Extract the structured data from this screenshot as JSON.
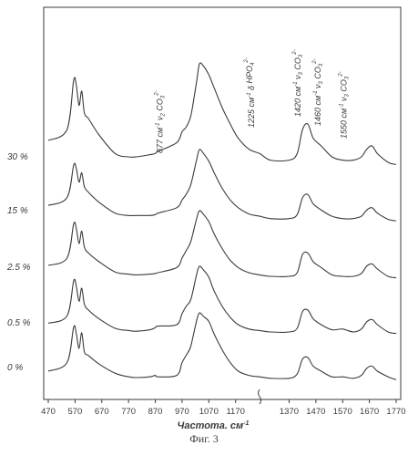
{
  "figure_caption": "Фиг. 3",
  "chart_data": {
    "type": "line",
    "xlabel": "Частота, см",
    "xlabel_superscript": "-1",
    "x_ticks": [
      "470",
      "570",
      "670",
      "770",
      "870",
      "970",
      "1070",
      "1170",
      "1370",
      "1470",
      "1570",
      "1670",
      "1770"
    ],
    "axis_break_between": [
      "1170",
      "1370"
    ],
    "series": [
      {
        "name": "30 %",
        "x": [
          470,
          540,
          565,
          575,
          585,
          595,
          605,
          620,
          660,
          720,
          770,
          800,
          850,
          870,
          880,
          950,
          970,
          985,
          1000,
          1010,
          1025,
          1035,
          1050,
          1070,
          1090,
          1120,
          1150,
          1180,
          1220,
          1260,
          1300,
          1370,
          1400,
          1420,
          1440,
          1460,
          1490,
          1530,
          1570,
          1610,
          1640,
          1660,
          1680,
          1700,
          1740,
          1770
        ],
        "y": [
          0.3,
          0.4,
          0.85,
          0.8,
          0.62,
          0.75,
          0.55,
          0.5,
          0.35,
          0.18,
          0.15,
          0.15,
          0.17,
          0.18,
          0.2,
          0.28,
          0.38,
          0.42,
          0.5,
          0.62,
          0.85,
          1.0,
          0.98,
          0.9,
          0.78,
          0.6,
          0.45,
          0.32,
          0.22,
          0.18,
          0.12,
          0.12,
          0.18,
          0.4,
          0.45,
          0.32,
          0.25,
          0.15,
          0.12,
          0.12,
          0.15,
          0.22,
          0.25,
          0.18,
          0.1,
          0.08
        ]
      },
      {
        "name": "15 %",
        "x": [
          470,
          540,
          565,
          575,
          585,
          595,
          605,
          620,
          660,
          720,
          770,
          800,
          850,
          870,
          880,
          950,
          970,
          985,
          1000,
          1010,
          1025,
          1035,
          1050,
          1070,
          1090,
          1120,
          1150,
          1180,
          1220,
          1260,
          1300,
          1370,
          1400,
          1420,
          1440,
          1460,
          1490,
          1530,
          1570,
          1610,
          1640,
          1660,
          1680,
          1700,
          1740,
          1770
        ],
        "y": [
          0.28,
          0.38,
          0.8,
          0.75,
          0.58,
          0.7,
          0.52,
          0.45,
          0.32,
          0.18,
          0.15,
          0.15,
          0.15,
          0.16,
          0.18,
          0.25,
          0.35,
          0.42,
          0.52,
          0.65,
          0.88,
          1.0,
          0.95,
          0.85,
          0.7,
          0.5,
          0.35,
          0.25,
          0.17,
          0.14,
          0.11,
          0.11,
          0.16,
          0.38,
          0.42,
          0.3,
          0.22,
          0.14,
          0.11,
          0.11,
          0.14,
          0.22,
          0.25,
          0.18,
          0.1,
          0.08
        ]
      },
      {
        "name": "2.5 %",
        "x": [
          470,
          540,
          565,
          575,
          585,
          595,
          605,
          620,
          660,
          720,
          770,
          800,
          850,
          870,
          880,
          950,
          970,
          985,
          1000,
          1010,
          1025,
          1035,
          1050,
          1070,
          1090,
          1120,
          1150,
          1180,
          1220,
          1260,
          1300,
          1370,
          1400,
          1420,
          1440,
          1460,
          1490,
          1530,
          1570,
          1610,
          1640,
          1660,
          1680,
          1700,
          1740,
          1770
        ],
        "y": [
          0.25,
          0.35,
          0.82,
          0.75,
          0.55,
          0.72,
          0.5,
          0.42,
          0.3,
          0.16,
          0.13,
          0.12,
          0.13,
          0.14,
          0.15,
          0.22,
          0.35,
          0.45,
          0.55,
          0.68,
          0.9,
          1.0,
          0.95,
          0.85,
          0.68,
          0.48,
          0.32,
          0.22,
          0.15,
          0.12,
          0.1,
          0.1,
          0.15,
          0.4,
          0.42,
          0.3,
          0.22,
          0.12,
          0.1,
          0.1,
          0.14,
          0.24,
          0.27,
          0.2,
          0.1,
          0.08
        ]
      },
      {
        "name": "0.5 %",
        "x": [
          470,
          540,
          565,
          575,
          585,
          595,
          605,
          620,
          660,
          720,
          770,
          800,
          850,
          870,
          880,
          950,
          970,
          985,
          1000,
          1010,
          1025,
          1035,
          1050,
          1070,
          1090,
          1120,
          1150,
          1180,
          1220,
          1260,
          1300,
          1370,
          1400,
          1420,
          1440,
          1460,
          1490,
          1530,
          1570,
          1610,
          1640,
          1660,
          1680,
          1700,
          1740,
          1770
        ],
        "y": [
          0.22,
          0.32,
          0.8,
          0.72,
          0.52,
          0.7,
          0.48,
          0.4,
          0.28,
          0.15,
          0.12,
          0.11,
          0.13,
          0.16,
          0.18,
          0.2,
          0.35,
          0.45,
          0.52,
          0.65,
          0.9,
          1.0,
          0.95,
          0.85,
          0.66,
          0.45,
          0.3,
          0.2,
          0.14,
          0.12,
          0.1,
          0.1,
          0.15,
          0.38,
          0.4,
          0.28,
          0.2,
          0.13,
          0.14,
          0.1,
          0.14,
          0.24,
          0.27,
          0.2,
          0.1,
          0.08
        ]
      },
      {
        "name": "0 %",
        "x": [
          470,
          540,
          565,
          575,
          585,
          595,
          605,
          620,
          660,
          720,
          770,
          800,
          850,
          870,
          880,
          950,
          970,
          985,
          1000,
          1010,
          1025,
          1035,
          1050,
          1070,
          1090,
          1120,
          1150,
          1180,
          1220,
          1260,
          1300,
          1370,
          1400,
          1420,
          1440,
          1460,
          1490,
          1530,
          1570,
          1610,
          1640,
          1660,
          1680,
          1700,
          1740,
          1770
        ],
        "y": [
          0.18,
          0.3,
          0.8,
          0.7,
          0.5,
          0.72,
          0.45,
          0.4,
          0.28,
          0.15,
          0.1,
          0.09,
          0.1,
          0.12,
          0.1,
          0.12,
          0.3,
          0.4,
          0.5,
          0.65,
          0.9,
          1.0,
          0.95,
          0.88,
          0.7,
          0.48,
          0.3,
          0.18,
          0.12,
          0.1,
          0.08,
          0.08,
          0.14,
          0.35,
          0.37,
          0.25,
          0.18,
          0.1,
          0.1,
          0.08,
          0.12,
          0.22,
          0.25,
          0.18,
          0.1,
          0.06
        ]
      }
    ],
    "annotations": [
      {
        "text": "877 см",
        "sup": "-1",
        "mode": "ν",
        "mode_sub": "2",
        "species": "CO",
        "species_sub": "3",
        "species_sup": "2-",
        "x": 877
      },
      {
        "text": "1225 см",
        "sup": "-1",
        "mode": "δ",
        "mode_sub": "",
        "species": "HPO",
        "species_sub": "4",
        "species_sup": "2-",
        "x": 1225
      },
      {
        "text": "1420 см",
        "sup": "-1",
        "mode": "ν",
        "mode_sub": "3",
        "species": "CO",
        "species_sub": "3",
        "species_sup": "2-",
        "x": 1420
      },
      {
        "text": "1460 см",
        "sup": "-1",
        "mode": "ν",
        "mode_sub": "3",
        "species": "CO",
        "species_sub": "3",
        "species_sup": "2-",
        "x": 1460
      },
      {
        "text": "1550 см",
        "sup": "-1",
        "mode": "ν",
        "mode_sub": "3",
        "species": "CO",
        "species_sub": "3",
        "species_sup": "2-",
        "x": 1550
      }
    ],
    "line_color": "#3a3a3a",
    "grid": false
  }
}
